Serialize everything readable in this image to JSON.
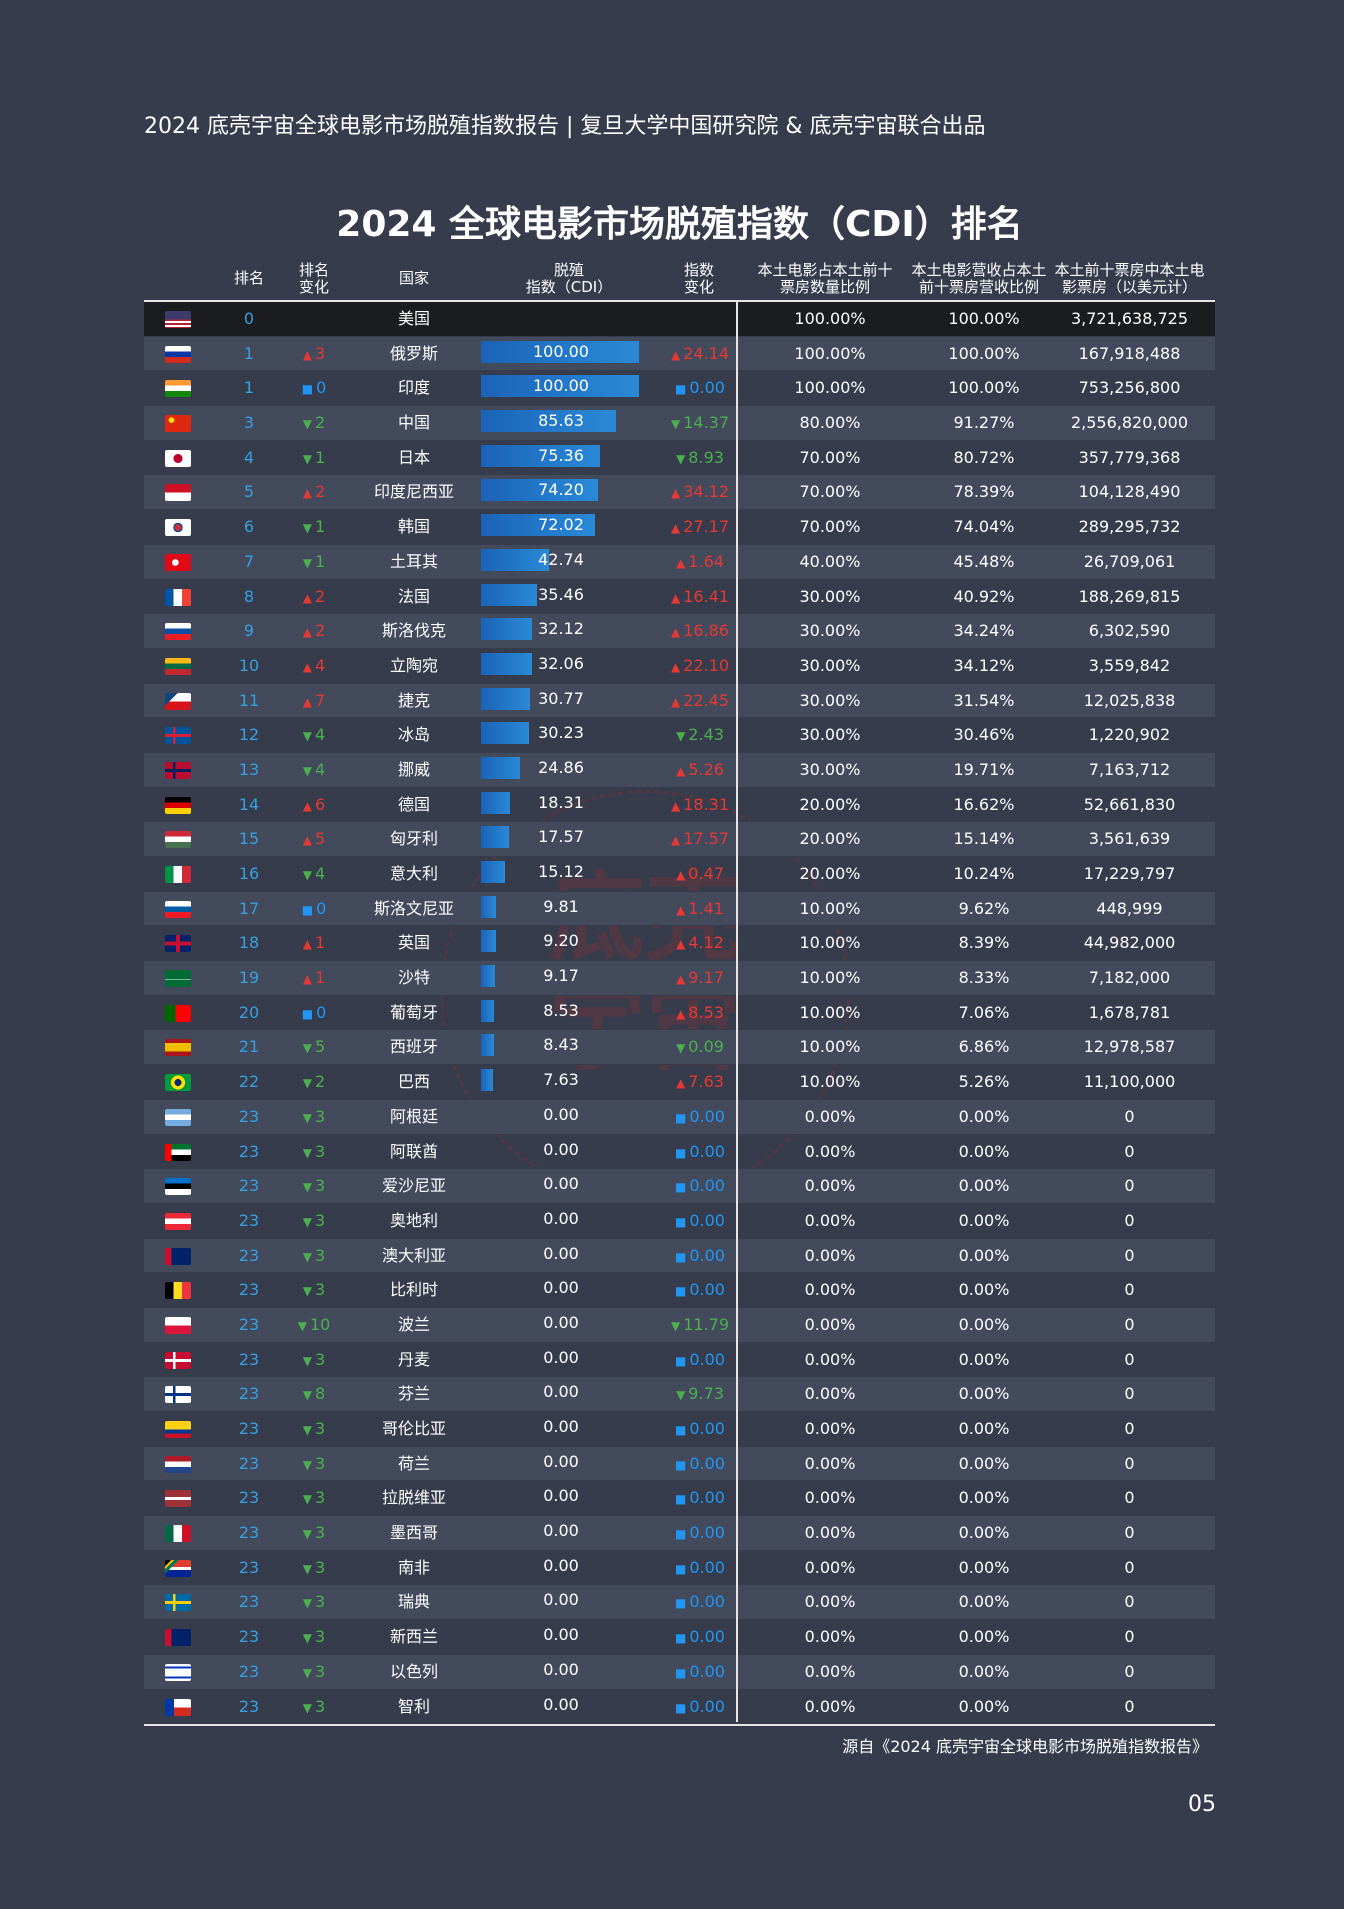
{
  "header": "2024 底壳宇宙全球电影市场脱殖指数报告 | 复旦大学中国研究院 & 底壳宇宙联合出品",
  "title": "2024 全球电影市场脱殖指数（CDI）排名",
  "columns": {
    "rank": "排名",
    "rank_change": "排名\n变化",
    "country": "国家",
    "cdi": "脱殖\n指数（CDI）",
    "index_change": "指数\n变化",
    "domestic_count": "本土电影占本土前十\n票房数量比例",
    "domestic_revenue": "本土电影营收占本土\n前十票房营收比例",
    "box_office": "本土前十票房中本土电\n影票房（以美元计）"
  },
  "rows": [
    {
      "flag": "us",
      "rank": "0",
      "rank_dir": "",
      "rank_change": "",
      "country": "美国",
      "cdi": "",
      "cdi_value": 0,
      "ich_dir": "",
      "index_change": "",
      "domestic_count": "100.00%",
      "domestic_revenue": "100.00%",
      "box_office": "3,721,638,725"
    },
    {
      "flag": "ru",
      "rank": "1",
      "rank_dir": "up",
      "rank_change": "3",
      "country": "俄罗斯",
      "cdi": "100.00",
      "cdi_value": 100,
      "ich_dir": "up",
      "index_change": "24.14",
      "domestic_count": "100.00%",
      "domestic_revenue": "100.00%",
      "box_office": "167,918,488"
    },
    {
      "flag": "in",
      "rank": "1",
      "rank_dir": "same",
      "rank_change": "0",
      "country": "印度",
      "cdi": "100.00",
      "cdi_value": 100,
      "ich_dir": "same",
      "index_change": "0.00",
      "domestic_count": "100.00%",
      "domestic_revenue": "100.00%",
      "box_office": "753,256,800"
    },
    {
      "flag": "cn",
      "rank": "3",
      "rank_dir": "down",
      "rank_change": "2",
      "country": "中国",
      "cdi": "85.63",
      "cdi_value": 85.63,
      "ich_dir": "down",
      "index_change": "14.37",
      "domestic_count": "80.00%",
      "domestic_revenue": "91.27%",
      "box_office": "2,556,820,000"
    },
    {
      "flag": "jp",
      "rank": "4",
      "rank_dir": "down",
      "rank_change": "1",
      "country": "日本",
      "cdi": "75.36",
      "cdi_value": 75.36,
      "ich_dir": "down",
      "index_change": "8.93",
      "domestic_count": "70.00%",
      "domestic_revenue": "80.72%",
      "box_office": "357,779,368"
    },
    {
      "flag": "id",
      "rank": "5",
      "rank_dir": "up",
      "rank_change": "2",
      "country": "印度尼西亚",
      "cdi": "74.20",
      "cdi_value": 74.2,
      "ich_dir": "up",
      "index_change": "34.12",
      "domestic_count": "70.00%",
      "domestic_revenue": "78.39%",
      "box_office": "104,128,490"
    },
    {
      "flag": "kr",
      "rank": "6",
      "rank_dir": "down",
      "rank_change": "1",
      "country": "韩国",
      "cdi": "72.02",
      "cdi_value": 72.02,
      "ich_dir": "up",
      "index_change": "27.17",
      "domestic_count": "70.00%",
      "domestic_revenue": "74.04%",
      "box_office": "289,295,732"
    },
    {
      "flag": "tr",
      "rank": "7",
      "rank_dir": "down",
      "rank_change": "1",
      "country": "土耳其",
      "cdi": "42.74",
      "cdi_value": 42.74,
      "ich_dir": "up",
      "index_change": "1.64",
      "domestic_count": "40.00%",
      "domestic_revenue": "45.48%",
      "box_office": "26,709,061"
    },
    {
      "flag": "fr",
      "rank": "8",
      "rank_dir": "up",
      "rank_change": "2",
      "country": "法国",
      "cdi": "35.46",
      "cdi_value": 35.46,
      "ich_dir": "up",
      "index_change": "16.41",
      "domestic_count": "30.00%",
      "domestic_revenue": "40.92%",
      "box_office": "188,269,815"
    },
    {
      "flag": "sk",
      "rank": "9",
      "rank_dir": "up",
      "rank_change": "2",
      "country": "斯洛伐克",
      "cdi": "32.12",
      "cdi_value": 32.12,
      "ich_dir": "up",
      "index_change": "16.86",
      "domestic_count": "30.00%",
      "domestic_revenue": "34.24%",
      "box_office": "6,302,590"
    },
    {
      "flag": "lt",
      "rank": "10",
      "rank_dir": "up",
      "rank_change": "4",
      "country": "立陶宛",
      "cdi": "32.06",
      "cdi_value": 32.06,
      "ich_dir": "up",
      "index_change": "22.10",
      "domestic_count": "30.00%",
      "domestic_revenue": "34.12%",
      "box_office": "3,559,842"
    },
    {
      "flag": "cz",
      "rank": "11",
      "rank_dir": "up",
      "rank_change": "7",
      "country": "捷克",
      "cdi": "30.77",
      "cdi_value": 30.77,
      "ich_dir": "up",
      "index_change": "22.45",
      "domestic_count": "30.00%",
      "domestic_revenue": "31.54%",
      "box_office": "12,025,838"
    },
    {
      "flag": "is",
      "rank": "12",
      "rank_dir": "down",
      "rank_change": "4",
      "country": "冰岛",
      "cdi": "30.23",
      "cdi_value": 30.23,
      "ich_dir": "down",
      "index_change": "2.43",
      "domestic_count": "30.00%",
      "domestic_revenue": "30.46%",
      "box_office": "1,220,902"
    },
    {
      "flag": "no",
      "rank": "13",
      "rank_dir": "down",
      "rank_change": "4",
      "country": "挪威",
      "cdi": "24.86",
      "cdi_value": 24.86,
      "ich_dir": "up",
      "index_change": "5.26",
      "domestic_count": "30.00%",
      "domestic_revenue": "19.71%",
      "box_office": "7,163,712"
    },
    {
      "flag": "de",
      "rank": "14",
      "rank_dir": "up",
      "rank_change": "6",
      "country": "德国",
      "cdi": "18.31",
      "cdi_value": 18.31,
      "ich_dir": "up",
      "index_change": "18.31",
      "domestic_count": "20.00%",
      "domestic_revenue": "16.62%",
      "box_office": "52,661,830"
    },
    {
      "flag": "hu",
      "rank": "15",
      "rank_dir": "up",
      "rank_change": "5",
      "country": "匈牙利",
      "cdi": "17.57",
      "cdi_value": 17.57,
      "ich_dir": "up",
      "index_change": "17.57",
      "domestic_count": "20.00%",
      "domestic_revenue": "15.14%",
      "box_office": "3,561,639"
    },
    {
      "flag": "it",
      "rank": "16",
      "rank_dir": "down",
      "rank_change": "4",
      "country": "意大利",
      "cdi": "15.12",
      "cdi_value": 15.12,
      "ich_dir": "up",
      "index_change": "0.47",
      "domestic_count": "20.00%",
      "domestic_revenue": "10.24%",
      "box_office": "17,229,797"
    },
    {
      "flag": "si",
      "rank": "17",
      "rank_dir": "same",
      "rank_change": "0",
      "country": "斯洛文尼亚",
      "cdi": "9.81",
      "cdi_value": 9.81,
      "ich_dir": "up",
      "index_change": "1.41",
      "domestic_count": "10.00%",
      "domestic_revenue": "9.62%",
      "box_office": "448,999"
    },
    {
      "flag": "gb",
      "rank": "18",
      "rank_dir": "up",
      "rank_change": "1",
      "country": "英国",
      "cdi": "9.20",
      "cdi_value": 9.2,
      "ich_dir": "up",
      "index_change": "4.12",
      "domestic_count": "10.00%",
      "domestic_revenue": "8.39%",
      "box_office": "44,982,000"
    },
    {
      "flag": "sa",
      "rank": "19",
      "rank_dir": "up",
      "rank_change": "1",
      "country": "沙特",
      "cdi": "9.17",
      "cdi_value": 9.17,
      "ich_dir": "up",
      "index_change": "9.17",
      "domestic_count": "10.00%",
      "domestic_revenue": "8.33%",
      "box_office": "7,182,000"
    },
    {
      "flag": "pt",
      "rank": "20",
      "rank_dir": "same",
      "rank_change": "0",
      "country": "葡萄牙",
      "cdi": "8.53",
      "cdi_value": 8.53,
      "ich_dir": "up",
      "index_change": "8.53",
      "domestic_count": "10.00%",
      "domestic_revenue": "7.06%",
      "box_office": "1,678,781"
    },
    {
      "flag": "es",
      "rank": "21",
      "rank_dir": "down",
      "rank_change": "5",
      "country": "西班牙",
      "cdi": "8.43",
      "cdi_value": 8.43,
      "ich_dir": "down",
      "index_change": "0.09",
      "domestic_count": "10.00%",
      "domestic_revenue": "6.86%",
      "box_office": "12,978,587"
    },
    {
      "flag": "br",
      "rank": "22",
      "rank_dir": "down",
      "rank_change": "2",
      "country": "巴西",
      "cdi": "7.63",
      "cdi_value": 7.63,
      "ich_dir": "up",
      "index_change": "7.63",
      "domestic_count": "10.00%",
      "domestic_revenue": "5.26%",
      "box_office": "11,100,000"
    },
    {
      "flag": "ar",
      "rank": "23",
      "rank_dir": "down",
      "rank_change": "3",
      "country": "阿根廷",
      "cdi": "0.00",
      "cdi_value": 0,
      "ich_dir": "same",
      "index_change": "0.00",
      "domestic_count": "0.00%",
      "domestic_revenue": "0.00%",
      "box_office": "0"
    },
    {
      "flag": "ae",
      "rank": "23",
      "rank_dir": "down",
      "rank_change": "3",
      "country": "阿联酋",
      "cdi": "0.00",
      "cdi_value": 0,
      "ich_dir": "same",
      "index_change": "0.00",
      "domestic_count": "0.00%",
      "domestic_revenue": "0.00%",
      "box_office": "0"
    },
    {
      "flag": "ee",
      "rank": "23",
      "rank_dir": "down",
      "rank_change": "3",
      "country": "爱沙尼亚",
      "cdi": "0.00",
      "cdi_value": 0,
      "ich_dir": "same",
      "index_change": "0.00",
      "domestic_count": "0.00%",
      "domestic_revenue": "0.00%",
      "box_office": "0"
    },
    {
      "flag": "at",
      "rank": "23",
      "rank_dir": "down",
      "rank_change": "3",
      "country": "奥地利",
      "cdi": "0.00",
      "cdi_value": 0,
      "ich_dir": "same",
      "index_change": "0.00",
      "domestic_count": "0.00%",
      "domestic_revenue": "0.00%",
      "box_office": "0"
    },
    {
      "flag": "au",
      "rank": "23",
      "rank_dir": "down",
      "rank_change": "3",
      "country": "澳大利亚",
      "cdi": "0.00",
      "cdi_value": 0,
      "ich_dir": "same",
      "index_change": "0.00",
      "domestic_count": "0.00%",
      "domestic_revenue": "0.00%",
      "box_office": "0"
    },
    {
      "flag": "be",
      "rank": "23",
      "rank_dir": "down",
      "rank_change": "3",
      "country": "比利时",
      "cdi": "0.00",
      "cdi_value": 0,
      "ich_dir": "same",
      "index_change": "0.00",
      "domestic_count": "0.00%",
      "domestic_revenue": "0.00%",
      "box_office": "0"
    },
    {
      "flag": "pl",
      "rank": "23",
      "rank_dir": "down",
      "rank_change": "10",
      "country": "波兰",
      "cdi": "0.00",
      "cdi_value": 0,
      "ich_dir": "down",
      "index_change": "11.79",
      "domestic_count": "0.00%",
      "domestic_revenue": "0.00%",
      "box_office": "0"
    },
    {
      "flag": "dk",
      "rank": "23",
      "rank_dir": "down",
      "rank_change": "3",
      "country": "丹麦",
      "cdi": "0.00",
      "cdi_value": 0,
      "ich_dir": "same",
      "index_change": "0.00",
      "domestic_count": "0.00%",
      "domestic_revenue": "0.00%",
      "box_office": "0"
    },
    {
      "flag": "fi",
      "rank": "23",
      "rank_dir": "down",
      "rank_change": "8",
      "country": "芬兰",
      "cdi": "0.00",
      "cdi_value": 0,
      "ich_dir": "down",
      "index_change": "9.73",
      "domestic_count": "0.00%",
      "domestic_revenue": "0.00%",
      "box_office": "0"
    },
    {
      "flag": "co",
      "rank": "23",
      "rank_dir": "down",
      "rank_change": "3",
      "country": "哥伦比亚",
      "cdi": "0.00",
      "cdi_value": 0,
      "ich_dir": "same",
      "index_change": "0.00",
      "domestic_count": "0.00%",
      "domestic_revenue": "0.00%",
      "box_office": "0"
    },
    {
      "flag": "nl",
      "rank": "23",
      "rank_dir": "down",
      "rank_change": "3",
      "country": "荷兰",
      "cdi": "0.00",
      "cdi_value": 0,
      "ich_dir": "same",
      "index_change": "0.00",
      "domestic_count": "0.00%",
      "domestic_revenue": "0.00%",
      "box_office": "0"
    },
    {
      "flag": "lv",
      "rank": "23",
      "rank_dir": "down",
      "rank_change": "3",
      "country": "拉脱维亚",
      "cdi": "0.00",
      "cdi_value": 0,
      "ich_dir": "same",
      "index_change": "0.00",
      "domestic_count": "0.00%",
      "domestic_revenue": "0.00%",
      "box_office": "0"
    },
    {
      "flag": "mx",
      "rank": "23",
      "rank_dir": "down",
      "rank_change": "3",
      "country": "墨西哥",
      "cdi": "0.00",
      "cdi_value": 0,
      "ich_dir": "same",
      "index_change": "0.00",
      "domestic_count": "0.00%",
      "domestic_revenue": "0.00%",
      "box_office": "0"
    },
    {
      "flag": "za",
      "rank": "23",
      "rank_dir": "down",
      "rank_change": "3",
      "country": "南非",
      "cdi": "0.00",
      "cdi_value": 0,
      "ich_dir": "same",
      "index_change": "0.00",
      "domestic_count": "0.00%",
      "domestic_revenue": "0.00%",
      "box_office": "0"
    },
    {
      "flag": "se",
      "rank": "23",
      "rank_dir": "down",
      "rank_change": "3",
      "country": "瑞典",
      "cdi": "0.00",
      "cdi_value": 0,
      "ich_dir": "same",
      "index_change": "0.00",
      "domestic_count": "0.00%",
      "domestic_revenue": "0.00%",
      "box_office": "0"
    },
    {
      "flag": "nz",
      "rank": "23",
      "rank_dir": "down",
      "rank_change": "3",
      "country": "新西兰",
      "cdi": "0.00",
      "cdi_value": 0,
      "ich_dir": "same",
      "index_change": "0.00",
      "domestic_count": "0.00%",
      "domestic_revenue": "0.00%",
      "box_office": "0"
    },
    {
      "flag": "il",
      "rank": "23",
      "rank_dir": "down",
      "rank_change": "3",
      "country": "以色列",
      "cdi": "0.00",
      "cdi_value": 0,
      "ich_dir": "same",
      "index_change": "0.00",
      "domestic_count": "0.00%",
      "domestic_revenue": "0.00%",
      "box_office": "0"
    },
    {
      "flag": "cl",
      "rank": "23",
      "rank_dir": "down",
      "rank_change": "3",
      "country": "智利",
      "cdi": "0.00",
      "cdi_value": 0,
      "ich_dir": "same",
      "index_change": "0.00",
      "domestic_count": "0.00%",
      "domestic_revenue": "0.00%",
      "box_office": "0"
    }
  ],
  "flags": {
    "us": "linear-gradient(180deg,#3c3b6e 0 50%,transparent 50%),repeating-linear-gradient(180deg,#b22234 0 2px,#ffffff 2px 4px)",
    "ru": "linear-gradient(180deg,#ffffff 0 33%,#0039a6 33% 66%,#d52b1e 66%)",
    "in": "linear-gradient(180deg,#ff9933 0 33%,#ffffff 33% 66%,#138808 66%)",
    "cn": "radial-gradient(circle at 25% 30%,#ffde00 0 12%,transparent 13%),#de2910",
    "jp": "radial-gradient(circle,#bc002d 0 28%,#ffffff 30%)",
    "id": "linear-gradient(180deg,#ce1126 0 50%,#ffffff 50%)",
    "kr": "radial-gradient(circle,#cd2e3a 0 22%,#0047a0 23% 30%,#ffffff 31%)",
    "tr": "radial-gradient(circle at 40% 50%,#ffffff 0 18%,transparent 19%),#e30a17",
    "fr": "linear-gradient(90deg,#0055a4 0 33%,#ffffff 33% 66%,#ef4135 66%)",
    "sk": "linear-gradient(180deg,#ffffff 0 33%,#0b4ea2 33% 66%,#ee1c25 66%)",
    "lt": "linear-gradient(180deg,#fdb913 0 33%,#006a44 33% 66%,#c1272d 66%)",
    "cz": "linear-gradient(135deg,#11457e 0 30%,transparent 30%),linear-gradient(180deg,#ffffff 0 50%,#d7141a 50%)",
    "is": "linear-gradient(90deg,transparent 0 30%,#dc1e35 30% 40%,transparent 40%),linear-gradient(180deg,transparent 0 42%,#dc1e35 42% 58%,transparent 58%),#02529c",
    "no": "linear-gradient(90deg,transparent 0 30%,#00205b 30% 40%,transparent 40%),linear-gradient(180deg,transparent 0 42%,#00205b 42% 58%,transparent 58%),#ba0c2f",
    "de": "linear-gradient(180deg,#000000 0 33%,#dd0000 33% 66%,#ffce00 66%)",
    "hu": "linear-gradient(180deg,#ce2939 0 33%,#ffffff 33% 66%,#477050 66%)",
    "it": "linear-gradient(90deg,#009246 0 33%,#ffffff 33% 66%,#ce2b37 66%)",
    "si": "linear-gradient(180deg,#ffffff 0 33%,#005da4 33% 66%,#ed1c24 66%)",
    "gb": "linear-gradient(90deg,transparent 0 42%,#c8102e 42% 58%,transparent 58%),linear-gradient(180deg,transparent 0 38%,#c8102e 38% 62%,transparent 62%),#012169",
    "sa": "linear-gradient(180deg,transparent 0 55%,#ffffff 55% 60%,transparent 60%),#006c35",
    "pt": "linear-gradient(90deg,#006600 0 40%,#ff0000 40%)",
    "es": "linear-gradient(180deg,#aa151b 0 25%,#f1bf00 25% 75%,#aa151b 75%)",
    "br": "radial-gradient(circle,#002776 0 22%,#fedf00 23% 45%,#009c3b 46%)",
    "ar": "linear-gradient(180deg,#74acdf 0 33%,#ffffff 33% 66%,#74acdf 66%)",
    "ae": "linear-gradient(90deg,#ff0000 0 25%,transparent 25%),linear-gradient(180deg,#00732f 0 33%,#ffffff 33% 66%,#000000 66%)",
    "ee": "linear-gradient(180deg,#0072ce 0 33%,#000000 33% 66%,#ffffff 66%)",
    "at": "linear-gradient(180deg,#ed2939 0 33%,#ffffff 33% 66%,#ed2939 66%)",
    "au": "linear-gradient(90deg,#c8102e 0 25%,transparent 25%),#012169",
    "be": "linear-gradient(90deg,#000000 0 33%,#fdda24 33% 66%,#ef3340 66%)",
    "pl": "linear-gradient(180deg,#ffffff 0 50%,#dc143c 50%)",
    "dk": "linear-gradient(90deg,transparent 0 30%,#ffffff 30% 40%,transparent 40%),linear-gradient(180deg,transparent 0 42%,#ffffff 42% 58%,transparent 58%),#c60c30",
    "fi": "linear-gradient(90deg,transparent 0 30%,#003580 30% 40%,transparent 40%),linear-gradient(180deg,transparent 0 42%,#003580 42% 58%,transparent 58%),#ffffff",
    "co": "linear-gradient(180deg,#fcd116 0 50%,#003893 50% 75%,#ce1126 75%)",
    "nl": "linear-gradient(180deg,#ae1c28 0 33%,#ffffff 33% 66%,#21468b 66%)",
    "lv": "linear-gradient(180deg,#9e3039 0 40%,#ffffff 40% 60%,#9e3039 60%)",
    "mx": "linear-gradient(90deg,#006847 0 33%,#ffffff 33% 66%,#ce1126 66%)",
    "za": "linear-gradient(135deg,#000000 0 15%,#ffb612 15% 22%,#007a4d 22% 32%,transparent 32%),linear-gradient(180deg,#e03c31 0 40%,#ffffff 40% 60%,#002395 60%)",
    "se": "linear-gradient(90deg,transparent 0 30%,#fecc00 30% 40%,transparent 40%),linear-gradient(180deg,transparent 0 42%,#fecc00 42% 58%,transparent 58%),#006aa7",
    "nz": "linear-gradient(90deg,#c8102e 0 25%,transparent 25%),#012169",
    "il": "linear-gradient(180deg,#ffffff 0 15%,#0038b8 15% 25%,#ffffff 25% 75%,#0038b8 75% 85%,#ffffff 85%)",
    "cl": "linear-gradient(90deg,#0039a6 0 35%,transparent 35%),linear-gradient(180deg,#ffffff 0 50%,#d52b1e 50%)"
  },
  "source": "源自《2024 底壳宇宙全球电影市场脱殖指数报告》",
  "page_number": "05",
  "watermark": "底壳\n宇宙"
}
